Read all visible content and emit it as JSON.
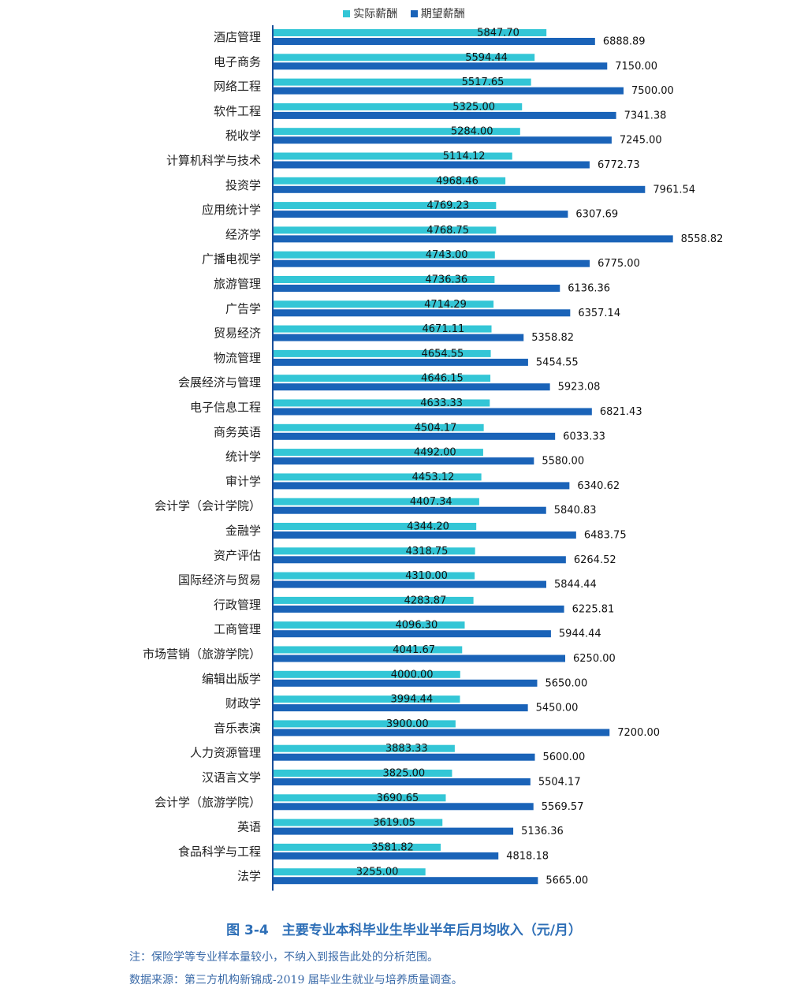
{
  "chart_data": {
    "type": "bar",
    "orientation": "horizontal",
    "categories": [
      "酒店管理",
      "电子商务",
      "网络工程",
      "软件工程",
      "税收学",
      "计算机科学与技术",
      "投资学",
      "应用统计学",
      "经济学",
      "广播电视学",
      "旅游管理",
      "广告学",
      "贸易经济",
      "物流管理",
      "会展经济与管理",
      "电子信息工程",
      "商务英语",
      "统计学",
      "审计学",
      "会计学（会计学院）",
      "金融学",
      "资产评估",
      "国际经济与贸易",
      "行政管理",
      "工商管理",
      "市场营销（旅游学院）",
      "编辑出版学",
      "财政学",
      "音乐表演",
      "人力资源管理",
      "汉语言文学",
      "会计学（旅游学院）",
      "英语",
      "食品科学与工程",
      "法学"
    ],
    "series": [
      {
        "name": "实际薪酬",
        "color": "#33c6d6",
        "values": [
          5847.7,
          5594.44,
          5517.65,
          5325.0,
          5284.0,
          5114.12,
          4968.46,
          4769.23,
          4768.75,
          4743.0,
          4736.36,
          4714.29,
          4671.11,
          4654.55,
          4646.15,
          4633.33,
          4504.17,
          4492.0,
          4453.12,
          4407.34,
          4344.2,
          4318.75,
          4310.0,
          4283.87,
          4096.3,
          4041.67,
          4000.0,
          3994.44,
          3900.0,
          3883.33,
          3825.0,
          3690.65,
          3619.05,
          3581.82,
          3255.0
        ],
        "labels": [
          "5847.70",
          "5594.44",
          "5517.65",
          "5325.00",
          "5284.00",
          "5114.12",
          "4968.46",
          "4769.23",
          "4768.75",
          "4743.00",
          "4736.36",
          "4714.29",
          "4671.11",
          "4654.55",
          "4646.15",
          "4633.33",
          "4504.17",
          "4492.00",
          "4453.12",
          "4407.34",
          "4344.20",
          "4318.75",
          "4310.00",
          "4283.87",
          "4096.30",
          "4041.67",
          "4000.00",
          "3994.44",
          "3900.00",
          "3883.33",
          "3825.00",
          "3690.65",
          "3619.05",
          "3581.82",
          "3255.00"
        ]
      },
      {
        "name": "期望薪酬",
        "color": "#1a63b8",
        "values": [
          6888.89,
          7150.0,
          7500.0,
          7341.38,
          7245.0,
          6772.73,
          7961.54,
          6307.69,
          8558.82,
          6775.0,
          6136.36,
          6357.14,
          5358.82,
          5454.55,
          5923.08,
          6821.43,
          6033.33,
          5580.0,
          6340.62,
          5840.83,
          6483.75,
          6264.52,
          5844.44,
          6225.81,
          5944.44,
          6250.0,
          5650.0,
          5450.0,
          7200.0,
          5600.0,
          5504.17,
          5569.57,
          5136.36,
          4818.18,
          5665.0
        ],
        "labels": [
          "6888.89",
          "7150.00",
          "7500.00",
          "7341.38",
          "7245.00",
          "6772.73",
          "7961.54",
          "6307.69",
          "8558.82",
          "6775.00",
          "6136.36",
          "6357.14",
          "5358.82",
          "5454.55",
          "5923.08",
          "6821.43",
          "6033.33",
          "5580.00",
          "6340.62",
          "5840.83",
          "6483.75",
          "6264.52",
          "5844.44",
          "6225.81",
          "5944.44",
          "6250.00",
          "5650.00",
          "5450.00",
          "7200.00",
          "5600.00",
          "5504.17",
          "5569.57",
          "5136.36",
          "4818.18",
          "5665.00"
        ]
      }
    ],
    "xlim": [
      0,
      10000
    ],
    "grid": false,
    "legend_position": "top-center"
  },
  "caption": "图 3-4　主要专业本科毕业生毕业半年后月均收入（元/月）",
  "notes": [
    "注：保险学等专业样本量较小，不纳入到报告此处的分析范围。",
    "数据来源：第三方机构新锦成-2019 届毕业生就业与培养质量调查。"
  ]
}
